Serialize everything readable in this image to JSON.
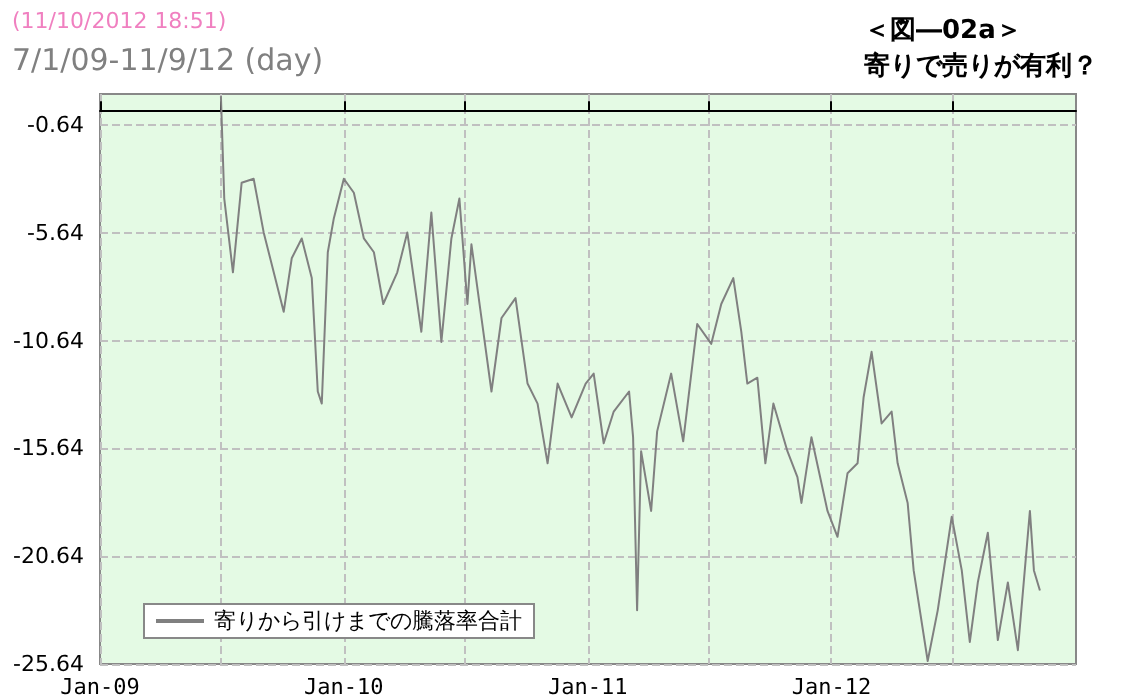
{
  "chart_data": {
    "type": "line",
    "title": "7/1/09-11/9/12 (day)",
    "annotations": [
      "(11/10/2012 18:51)",
      "＜図―02a＞",
      "寄りで売りが有利？"
    ],
    "x": [
      "2009-07-01",
      "2009-07-06",
      "2009-07-19",
      "2009-08-01",
      "2009-08-19",
      "2009-09-03",
      "2009-10-03",
      "2009-10-15",
      "2009-10-30",
      "2009-11-14",
      "2009-11-23",
      "2009-11-29",
      "2009-12-08",
      "2009-12-17",
      "2010-01-01",
      "2010-01-16",
      "2010-01-31",
      "2010-02-15",
      "2010-03-01",
      "2010-03-22",
      "2010-04-06",
      "2010-04-27",
      "2010-05-12",
      "2010-05-27",
      "2010-06-11",
      "2010-06-23",
      "2010-07-05",
      "2010-07-11",
      "2010-07-26",
      "2010-08-10",
      "2010-08-25",
      "2010-09-15",
      "2010-10-03",
      "2010-10-18",
      "2010-11-02",
      "2010-11-17",
      "2010-12-08",
      "2010-12-29",
      "2011-01-10",
      "2011-01-25",
      "2011-02-09",
      "2011-03-04",
      "2011-03-10",
      "2011-03-16",
      "2011-03-22",
      "2011-04-06",
      "2011-04-15",
      "2011-05-06",
      "2011-05-24",
      "2011-06-14",
      "2011-07-05",
      "2011-07-20",
      "2011-08-07",
      "2011-08-19",
      "2011-08-28",
      "2011-09-12",
      "2011-09-24",
      "2011-10-06",
      "2011-10-27",
      "2011-11-11",
      "2011-11-17",
      "2011-12-02",
      "2011-12-26",
      "2012-01-10",
      "2012-01-25",
      "2012-02-09",
      "2012-02-18",
      "2012-03-01",
      "2012-03-16",
      "2012-03-31",
      "2012-04-09",
      "2012-04-24",
      "2012-05-03",
      "2012-05-24",
      "2012-06-08",
      "2012-06-29",
      "2012-07-14",
      "2012-07-26",
      "2012-08-07",
      "2012-08-22",
      "2012-09-06",
      "2012-09-21",
      "2012-10-06",
      "2012-10-24",
      "2012-10-30",
      "2012-11-08"
    ],
    "series": [
      {
        "name": "寄りから引けまでの騰落率合計",
        "color": "#808080",
        "values": [
          0.7,
          -4.05,
          -7.47,
          -3.32,
          -3.13,
          -5.62,
          -9.3,
          -6.82,
          -5.9,
          -7.74,
          -13.0,
          -13.56,
          -6.54,
          -4.97,
          -3.13,
          -3.78,
          -5.9,
          -6.54,
          -8.94,
          -7.47,
          -5.62,
          -10.23,
          -4.7,
          -10.7,
          -5.9,
          -4.05,
          -8.94,
          -6.17,
          -9.59,
          -13.0,
          -9.59,
          -8.67,
          -12.63,
          -13.56,
          -16.33,
          -12.63,
          -14.2,
          -12.63,
          -12.17,
          -15.4,
          -13.93,
          -13.0,
          -15.12,
          -23.15,
          -15.77,
          -18.54,
          -14.85,
          -12.17,
          -15.31,
          -9.87,
          -10.79,
          -8.94,
          -7.74,
          -10.23,
          -12.63,
          -12.36,
          -16.33,
          -13.56,
          -15.77,
          -16.97,
          -18.17,
          -15.12,
          -18.54,
          -19.74,
          -16.79,
          -16.33,
          -13.28,
          -11.16,
          -14.48,
          -13.93,
          -16.33,
          -18.17,
          -21.3,
          -25.5,
          -23.15,
          -18.81,
          -21.3,
          -24.62,
          -21.86,
          -19.55,
          -24.53,
          -21.86,
          -25.0,
          -18.54,
          -21.3,
          -22.23
        ]
      }
    ],
    "xlim": [
      "2009-01-01",
      "2013-01-01"
    ],
    "xticks": [
      {
        "value": "2009-01-01",
        "label": "Jan-09"
      },
      {
        "value": "2009-07-01",
        "label": null
      },
      {
        "value": "2010-01-01",
        "label": "Jan-10"
      },
      {
        "value": "2010-07-01",
        "label": null
      },
      {
        "value": "2011-01-01",
        "label": "Jan-11"
      },
      {
        "value": "2011-07-01",
        "label": null
      },
      {
        "value": "2012-01-01",
        "label": "Jan-12"
      },
      {
        "value": "2012-07-01",
        "label": null
      }
    ],
    "ylim": [
      -25.64,
      0.8
    ],
    "yticks": [
      -25.64,
      -20.64,
      -15.64,
      -10.64,
      -5.64,
      -0.64
    ],
    "grid": true,
    "legend": "bottom left",
    "marker": "none",
    "line_style": "solid"
  }
}
